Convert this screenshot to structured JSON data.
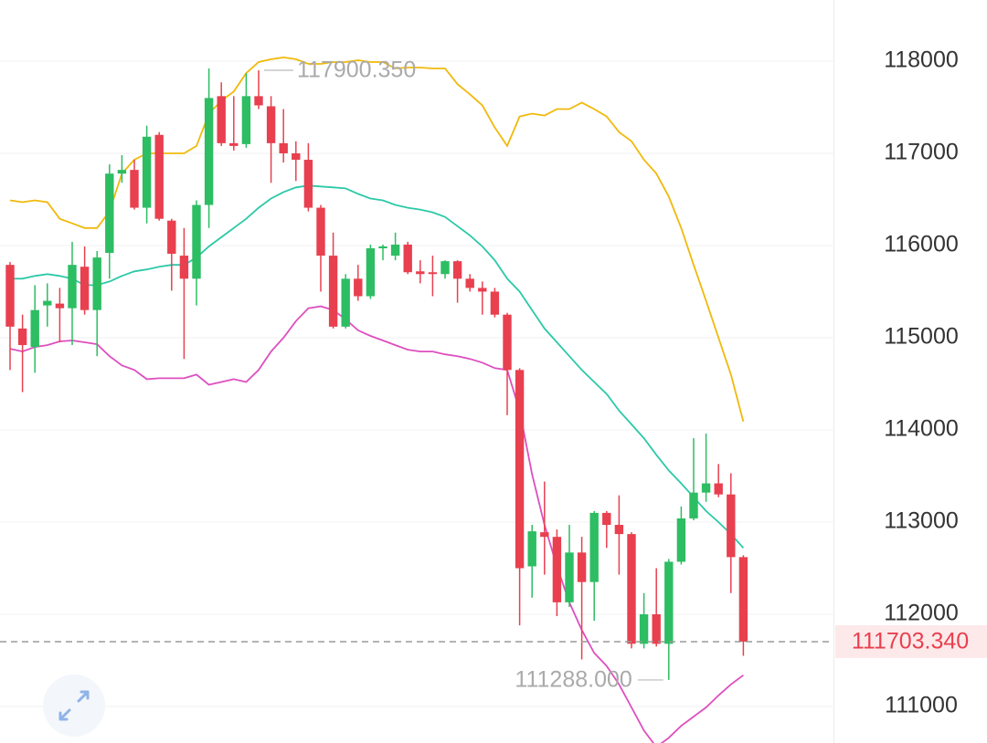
{
  "chart_data": {
    "type": "candlestick",
    "ylim": [
      110604,
      118663
    ],
    "yticks": [
      111000,
      112000,
      113000,
      114000,
      115000,
      116000,
      117000,
      118000
    ],
    "grid": true,
    "up_color": "#2dbd63",
    "down_color": "#e8404f",
    "open": [
      115790,
      115100,
      114900,
      115350,
      115370,
      115320,
      115770,
      115300,
      115920,
      116780,
      116820,
      116410,
      117200,
      116270,
      115890,
      115640,
      116440,
      117620,
      117110,
      117100,
      117620,
      117510,
      117110,
      117000,
      116930,
      116410,
      115890,
      115120,
      115640,
      115450,
      115970,
      115890,
      116010,
      115720,
      115710,
      115690,
      115830,
      115640,
      115540,
      115500,
      115250,
      114650,
      112520,
      112890,
      112840,
      112130,
      112670,
      112350,
      113100,
      112970,
      112870,
      111680,
      112000,
      111680,
      112570,
      113040,
      113320,
      113420,
      113300,
      112620
    ],
    "close": [
      115120,
      114920,
      115300,
      115400,
      115320,
      115790,
      115300,
      115870,
      116780,
      116820,
      116410,
      117180,
      116290,
      115910,
      115640,
      116440,
      117600,
      117110,
      117080,
      117620,
      117520,
      117110,
      117000,
      116930,
      116410,
      115890,
      115120,
      115640,
      115450,
      115970,
      115990,
      116010,
      115710,
      115690,
      115690,
      115830,
      115640,
      115540,
      115500,
      115250,
      114650,
      112500,
      112900,
      112840,
      112130,
      112670,
      112350,
      113100,
      112970,
      112870,
      111680,
      112000,
      111680,
      112570,
      113040,
      113320,
      113420,
      113300,
      112620,
      111703.34
    ],
    "high": [
      115820,
      115250,
      115570,
      115590,
      115540,
      116040,
      115990,
      115940,
      116880,
      116980,
      116930,
      117300,
      117230,
      116290,
      116190,
      116490,
      117920,
      117770,
      117620,
      117870,
      117900.35,
      117620,
      117480,
      117130,
      117110,
      116440,
      116140,
      115690,
      115790,
      116010,
      116010,
      116140,
      116040,
      115840,
      115890,
      115840,
      115840,
      115690,
      115610,
      115540,
      115270,
      114670,
      112970,
      113440,
      112920,
      112970,
      112840,
      113120,
      113120,
      113290,
      112890,
      112230,
      112500,
      112600,
      113170,
      113910,
      113960,
      113630,
      113530,
      112640
    ],
    "low": [
      114650,
      114410,
      114620,
      115120,
      114950,
      114920,
      115250,
      114800,
      115640,
      116680,
      116390,
      116240,
      116270,
      115510,
      114770,
      115350,
      116190,
      117080,
      117030,
      117060,
      117480,
      116680,
      116900,
      116700,
      116370,
      115500,
      115100,
      115100,
      115400,
      115420,
      115840,
      115840,
      115690,
      115590,
      115450,
      115640,
      115380,
      115500,
      115250,
      115220,
      114160,
      111880,
      112180,
      112430,
      111980,
      112080,
      111510,
      111930,
      112720,
      112430,
      111630,
      111630,
      111650,
      111288,
      112540,
      113020,
      113220,
      113270,
      112230,
      111550
    ],
    "bands": [
      {
        "color": "#f0b90b",
        "values": [
          116490,
          116470,
          116490,
          116470,
          116290,
          116240,
          116190,
          116190,
          116370,
          116780,
          116930,
          117000,
          117000,
          117000,
          117000,
          117080,
          117430,
          117570,
          117670,
          117870,
          117990,
          118020,
          118040,
          118020,
          117970,
          117970,
          117990,
          117990,
          118010,
          117990,
          117990,
          117920,
          117930,
          117930,
          117920,
          117920,
          117750,
          117640,
          117520,
          117280,
          117080,
          117400,
          117430,
          117410,
          117480,
          117480,
          117550,
          117480,
          117400,
          117230,
          117130,
          116930,
          116780,
          116530,
          116190,
          115790,
          115400,
          115000,
          114600,
          114090
        ]
      },
      {
        "color": "#2cc9a8",
        "values": [
          115640,
          115640,
          115670,
          115690,
          115670,
          115640,
          115570,
          115570,
          115610,
          115670,
          115720,
          115740,
          115770,
          115790,
          115790,
          115870,
          115990,
          116090,
          116190,
          116290,
          116410,
          116510,
          116580,
          116630,
          116650,
          116640,
          116630,
          116620,
          116560,
          116510,
          116490,
          116440,
          116410,
          116390,
          116360,
          116310,
          116210,
          116110,
          115990,
          115840,
          115640,
          115500,
          115300,
          115100,
          114950,
          114800,
          114650,
          114520,
          114390,
          114210,
          114060,
          113910,
          113730,
          113560,
          113420,
          113270,
          113120,
          113000,
          112870,
          112720
        ]
      },
      {
        "color": "#de4fbf",
        "values": [
          114880,
          114850,
          114900,
          114920,
          114960,
          114970,
          114950,
          114930,
          114800,
          114700,
          114650,
          114550,
          114560,
          114560,
          114560,
          114600,
          114490,
          114520,
          114550,
          114520,
          114650,
          114850,
          115000,
          115180,
          115320,
          115340,
          115300,
          115200,
          115080,
          115020,
          114970,
          114920,
          114870,
          114850,
          114850,
          114820,
          114800,
          114770,
          114730,
          114670,
          114650,
          114210,
          113520,
          112970,
          112520,
          112130,
          111830,
          111580,
          111440,
          111240,
          110990,
          110740,
          110560,
          110660,
          110790,
          110890,
          110990,
          111120,
          111240,
          111340
        ]
      }
    ],
    "annotations": [
      {
        "value": 117900.35,
        "label": "117900.350",
        "side": "right"
      },
      {
        "value": 111288,
        "label": "111288.000",
        "side": "left"
      }
    ],
    "last_price": {
      "value": 111703.34,
      "label": "111703.340"
    }
  }
}
